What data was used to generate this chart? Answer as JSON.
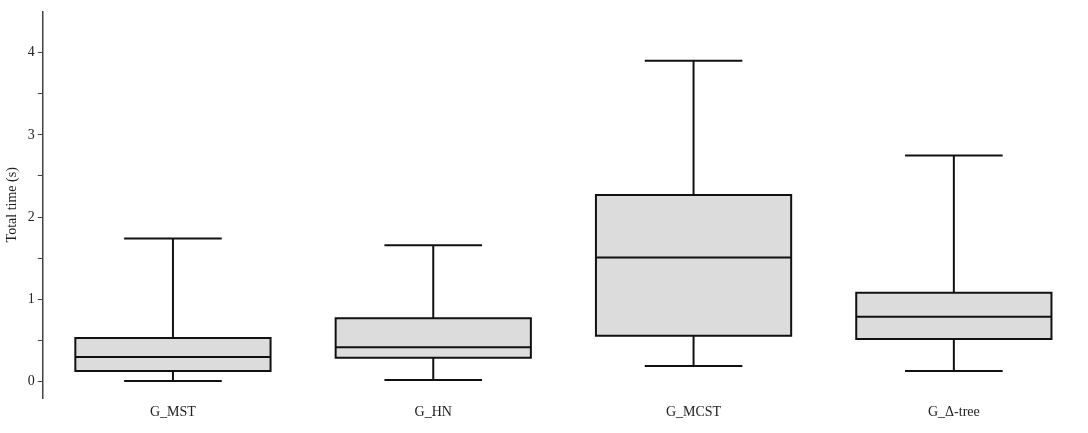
{
  "chart_data": {
    "type": "box",
    "ylabel": "Total time (s)",
    "categories": [
      "G_MST",
      "G_HN",
      "G_MCST",
      "G_Δ-tree"
    ],
    "color": "#dcdcdc",
    "boxes": [
      {
        "low": 0.01,
        "q1": 0.13,
        "median": 0.3,
        "q3": 0.53,
        "high": 1.74
      },
      {
        "low": 0.02,
        "q1": 0.29,
        "median": 0.42,
        "q3": 0.77,
        "high": 1.66
      },
      {
        "low": 0.19,
        "q1": 0.56,
        "median": 1.51,
        "q3": 2.27,
        "high": 3.9
      },
      {
        "low": 0.13,
        "q1": 0.52,
        "median": 0.79,
        "q3": 1.08,
        "high": 2.75
      }
    ],
    "ylim": [
      -0.2,
      4.5
    ],
    "yticks": [
      0,
      {
        "value": 0.5,
        "label": null
      },
      1,
      {
        "value": 1.5,
        "label": null
      },
      2,
      {
        "value": 2.5,
        "label": null
      },
      3,
      {
        "value": 3.5,
        "label": null
      },
      4
    ],
    "grid": false,
    "legend": false
  }
}
